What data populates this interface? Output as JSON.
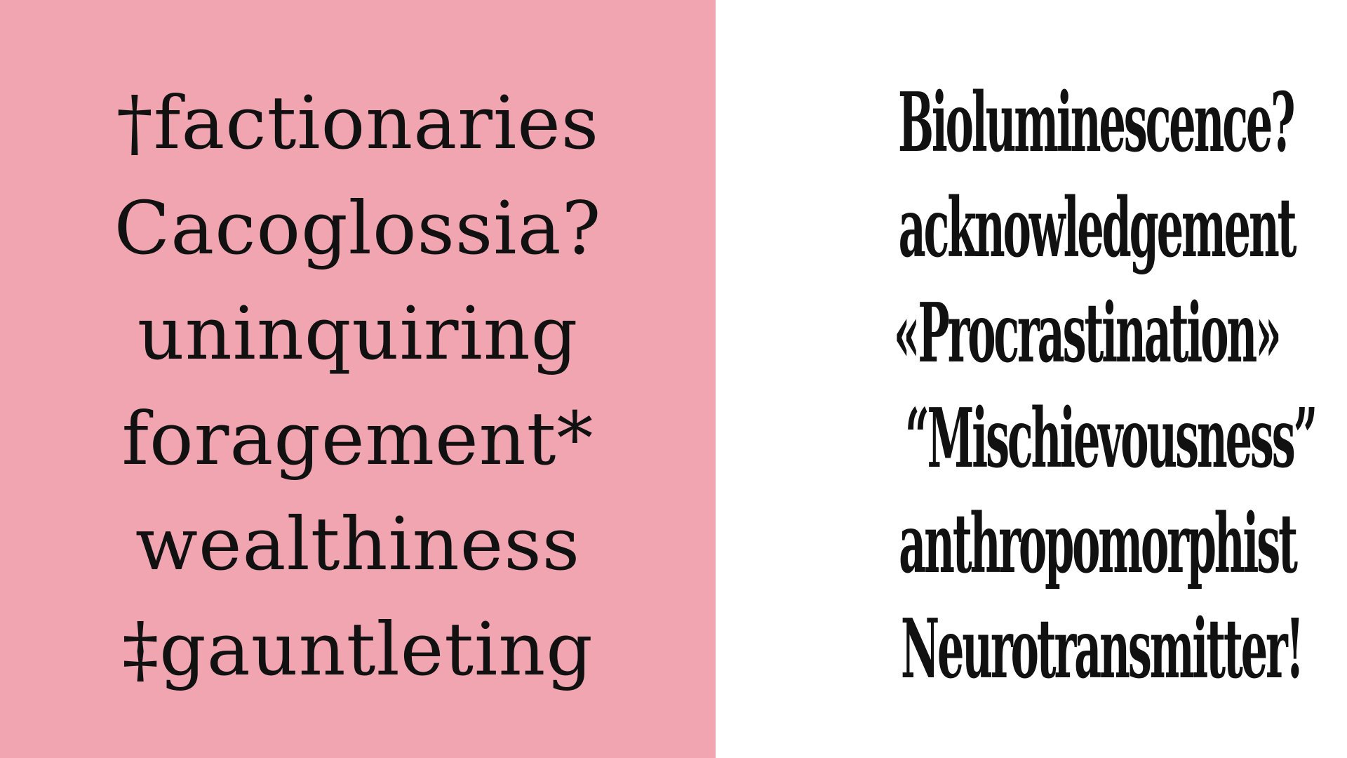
{
  "colors": {
    "left_background": "#f0a5b1",
    "right_background": "#ffffff",
    "text": "#111111"
  },
  "left_words": [
    "†factionaries",
    "Cacoglossia?",
    "uninquiring",
    "foragement*",
    "wealthiness",
    "‡gauntleting"
  ],
  "right_words": [
    "Bioluminescence?",
    "acknowledgement",
    "«Procrastination»",
    "“Mischievousness”",
    "anthropomorphist",
    "Neurotransmitter!"
  ]
}
